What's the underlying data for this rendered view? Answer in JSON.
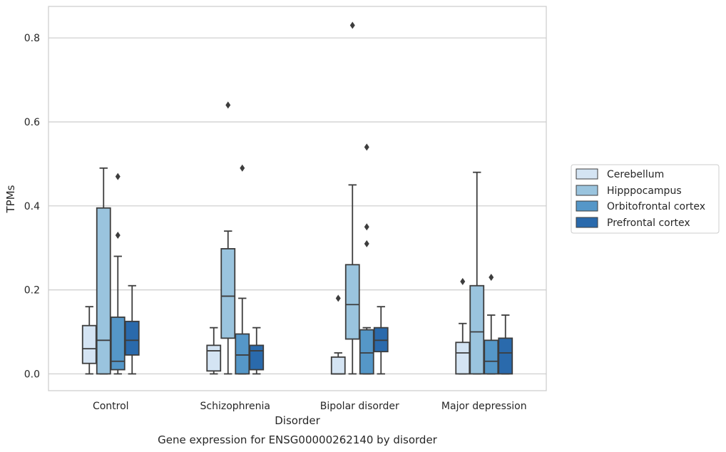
{
  "chart_data": {
    "type": "box",
    "title": "",
    "caption": "Gene expression for ENSG00000262140 by disorder",
    "xlabel": "Disorder",
    "ylabel": "TPMs",
    "ylim": [
      -0.04,
      0.875
    ],
    "yticks": [
      0.0,
      0.2,
      0.4,
      0.6,
      0.8
    ],
    "ytick_labels": [
      "0.0",
      "0.2",
      "0.4",
      "0.6",
      "0.8"
    ],
    "grid": "horizontal",
    "legend_position": "right",
    "categories": [
      "Control",
      "Schizophrenia",
      "Bipolar disorder",
      "Major depression"
    ],
    "series": [
      {
        "name": "Cerebellum",
        "color": "#d4e4f3",
        "boxes": [
          {
            "whislo": 0.0,
            "q1": 0.025,
            "med": 0.06,
            "q3": 0.115,
            "whishi": 0.16,
            "fliers": []
          },
          {
            "whislo": 0.0,
            "q1": 0.007,
            "med": 0.055,
            "q3": 0.068,
            "whishi": 0.11,
            "fliers": []
          },
          {
            "whislo": 0.0,
            "q1": 0.0,
            "med": 0.0,
            "q3": 0.04,
            "whishi": 0.05,
            "fliers": [
              0.18
            ]
          },
          {
            "whislo": 0.0,
            "q1": 0.0,
            "med": 0.05,
            "q3": 0.075,
            "whishi": 0.12,
            "fliers": [
              0.22
            ]
          }
        ]
      },
      {
        "name": "Hipppocampus",
        "color": "#9ac4de",
        "boxes": [
          {
            "whislo": 0.0,
            "q1": 0.0,
            "med": 0.08,
            "q3": 0.395,
            "whishi": 0.49,
            "fliers": []
          },
          {
            "whislo": 0.0,
            "q1": 0.085,
            "med": 0.185,
            "q3": 0.298,
            "whishi": 0.34,
            "fliers": [
              0.64
            ]
          },
          {
            "whislo": 0.0,
            "q1": 0.083,
            "med": 0.165,
            "q3": 0.26,
            "whishi": 0.45,
            "fliers": [
              0.83
            ]
          },
          {
            "whislo": 0.0,
            "q1": 0.0,
            "med": 0.1,
            "q3": 0.21,
            "whishi": 0.48,
            "fliers": []
          }
        ]
      },
      {
        "name": "Orbitofrontal cortex",
        "color": "#5597c8",
        "boxes": [
          {
            "whislo": 0.0,
            "q1": 0.01,
            "med": 0.03,
            "q3": 0.135,
            "whishi": 0.28,
            "fliers": [
              0.47,
              0.33
            ]
          },
          {
            "whislo": 0.0,
            "q1": 0.0,
            "med": 0.045,
            "q3": 0.095,
            "whishi": 0.18,
            "fliers": [
              0.49
            ]
          },
          {
            "whislo": 0.0,
            "q1": 0.0,
            "med": 0.05,
            "q3": 0.105,
            "whishi": 0.11,
            "fliers": [
              0.54,
              0.35,
              0.31
            ]
          },
          {
            "whislo": 0.0,
            "q1": 0.0,
            "med": 0.03,
            "q3": 0.08,
            "whishi": 0.14,
            "fliers": [
              0.23
            ]
          }
        ]
      },
      {
        "name": "Prefrontal cortex",
        "color": "#2a6aac",
        "boxes": [
          {
            "whislo": 0.0,
            "q1": 0.045,
            "med": 0.08,
            "q3": 0.125,
            "whishi": 0.21,
            "fliers": []
          },
          {
            "whislo": 0.0,
            "q1": 0.01,
            "med": 0.055,
            "q3": 0.068,
            "whishi": 0.11,
            "fliers": []
          },
          {
            "whislo": 0.0,
            "q1": 0.053,
            "med": 0.08,
            "q3": 0.11,
            "whishi": 0.16,
            "fliers": []
          },
          {
            "whislo": 0.0,
            "q1": 0.0,
            "med": 0.05,
            "q3": 0.085,
            "whishi": 0.14,
            "fliers": []
          }
        ]
      }
    ],
    "line_color": "#3d3d3d",
    "grid_color": "#cccccc",
    "frame_color": "#cccccc"
  }
}
